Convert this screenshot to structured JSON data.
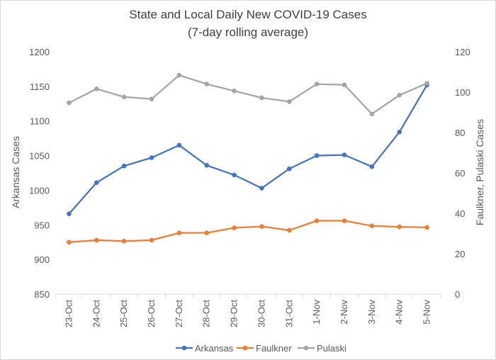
{
  "chart_data": {
    "type": "line",
    "title": "State and Local Daily New COVID-19 Cases",
    "subtitle": "(7-day rolling average)",
    "categories": [
      "23-Oct",
      "24-Oct",
      "25-Oct",
      "26-Oct",
      "27-Oct",
      "28-Oct",
      "29-Oct",
      "30-Oct",
      "31-Oct",
      "1-Nov",
      "2-Nov",
      "3-Nov",
      "4-Nov",
      "5-Nov"
    ],
    "y_left": {
      "label": "Arkansas Cases",
      "min": 850,
      "max": 1200,
      "step": 50,
      "ticks": [
        "850",
        "900",
        "950",
        "1000",
        "1050",
        "1100",
        "1150",
        "1200"
      ]
    },
    "y_right": {
      "label": "Faulkner, Pulaski Cases",
      "min": 0,
      "max": 120,
      "step": 20,
      "ticks": [
        "0",
        "20",
        "40",
        "60",
        "80",
        "100",
        "120"
      ]
    },
    "grid": false,
    "legend_position": "bottom",
    "series": [
      {
        "name": "Arkansas",
        "axis": "left",
        "color": "#4472c4",
        "values": [
          966,
          1011,
          1035,
          1047,
          1065,
          1036,
          1022,
          1003,
          1031,
          1050,
          1051,
          1034,
          1084,
          1152
        ]
      },
      {
        "name": "Faulkner",
        "axis": "right",
        "color": "#ed7d31",
        "values": [
          25.7,
          26.7,
          26.2,
          26.7,
          30.3,
          30.3,
          32.8,
          33.5,
          31.6,
          36.3,
          36.3,
          33.8,
          33.3,
          33.0
        ]
      },
      {
        "name": "Pulaski",
        "axis": "right",
        "color": "#a5a5a5",
        "values": [
          94.7,
          101.6,
          97.6,
          96.6,
          108.4,
          104.0,
          100.6,
          97.2,
          95.3,
          104.0,
          103.6,
          89.2,
          98.5,
          104.4
        ]
      }
    ]
  }
}
